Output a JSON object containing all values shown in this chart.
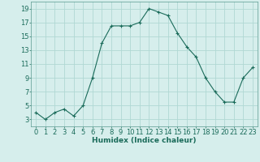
{
  "x": [
    0,
    1,
    2,
    3,
    4,
    5,
    6,
    7,
    8,
    9,
    10,
    11,
    12,
    13,
    14,
    15,
    16,
    17,
    18,
    19,
    20,
    21,
    22,
    23
  ],
  "y": [
    4,
    3,
    4,
    4.5,
    3.5,
    5,
    9,
    14,
    16.5,
    16.5,
    16.5,
    17,
    19,
    18.5,
    18,
    15.5,
    13.5,
    12,
    9,
    7,
    5.5,
    5.5,
    9,
    10.5
  ],
  "line_color": "#1a6b5a",
  "marker_color": "#1a6b5a",
  "bg_color": "#d6eeec",
  "grid_color": "#b0d8d4",
  "xlabel": "Humidex (Indice chaleur)",
  "ylim": [
    2,
    20
  ],
  "xlim": [
    -0.5,
    23.5
  ],
  "yticks": [
    3,
    5,
    7,
    9,
    11,
    13,
    15,
    17,
    19
  ],
  "xticks": [
    0,
    1,
    2,
    3,
    4,
    5,
    6,
    7,
    8,
    9,
    10,
    11,
    12,
    13,
    14,
    15,
    16,
    17,
    18,
    19,
    20,
    21,
    22,
    23
  ],
  "xlabel_fontsize": 6.5,
  "tick_fontsize": 6.0,
  "title_color": "#1a6b5a"
}
